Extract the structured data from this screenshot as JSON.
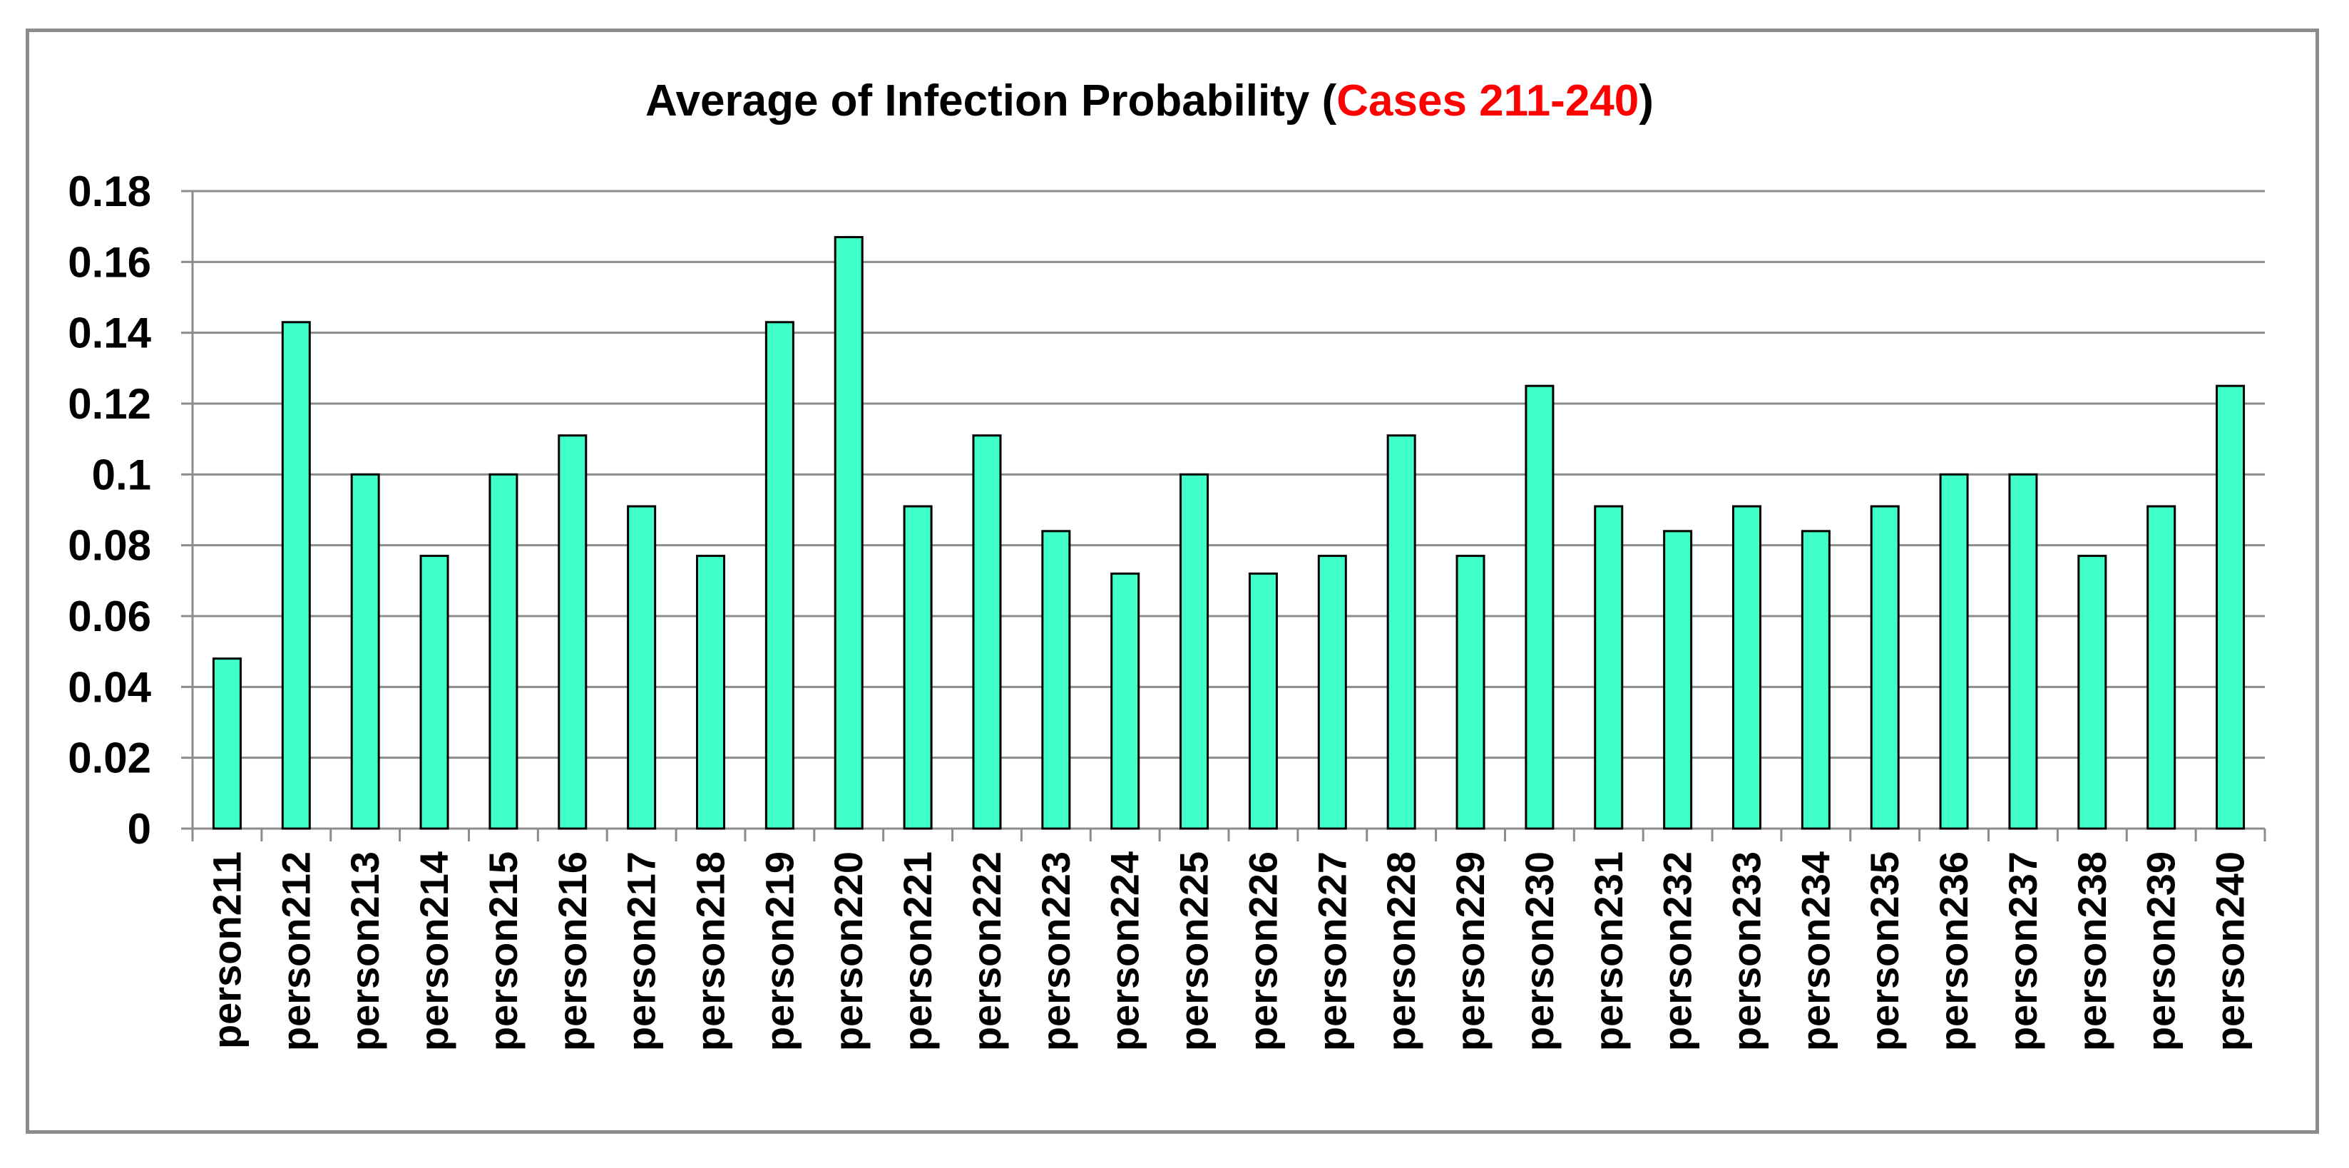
{
  "chart_data": {
    "type": "bar",
    "title": "Average of Infection Probability (Cases 211-240)",
    "title_parts": {
      "prefix": "Average of Infection Probability (",
      "highlight": "Cases 211-240",
      "suffix": ")"
    },
    "xlabel": "",
    "ylabel": "",
    "ylim": [
      0,
      0.18
    ],
    "yticks": [
      0,
      0.02,
      0.04,
      0.06,
      0.08,
      0.1,
      0.12,
      0.14,
      0.16,
      0.18
    ],
    "ytick_labels": [
      "0",
      "0.02",
      "0.04",
      "0.06",
      "0.08",
      "0.1",
      "0.12",
      "0.14",
      "0.16",
      "0.18"
    ],
    "grid": true,
    "legend": "none",
    "categories": [
      "person211",
      "person212",
      "person213",
      "person214",
      "person215",
      "person216",
      "person217",
      "person218",
      "person219",
      "person220",
      "person221",
      "person222",
      "person223",
      "person224",
      "person225",
      "person226",
      "person227",
      "person228",
      "person229",
      "person230",
      "person231",
      "person232",
      "person233",
      "person234",
      "person235",
      "person236",
      "person237",
      "person238",
      "person239",
      "person240"
    ],
    "values": [
      0.048,
      0.143,
      0.1,
      0.077,
      0.1,
      0.111,
      0.091,
      0.077,
      0.143,
      0.167,
      0.091,
      0.111,
      0.084,
      0.072,
      0.1,
      0.072,
      0.077,
      0.111,
      0.077,
      0.125,
      0.091,
      0.084,
      0.091,
      0.084,
      0.091,
      0.1,
      0.1,
      0.077,
      0.091,
      0.125
    ],
    "colors": {
      "bar_fill": "#40FFC8",
      "bar_stroke": "#000000",
      "gridline": "#8c8c8c",
      "title_highlight": "#FF0000",
      "text": "#000000"
    }
  }
}
